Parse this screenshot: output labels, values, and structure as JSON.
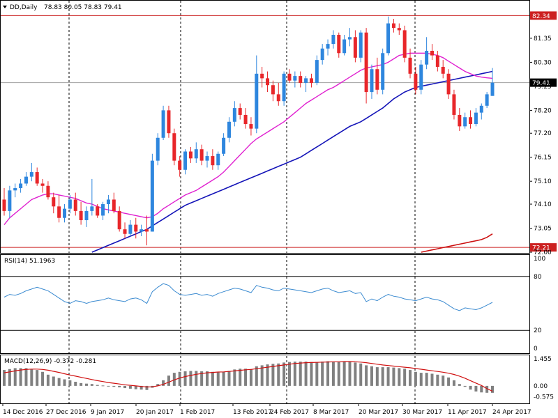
{
  "header": {
    "symbol": "DD,Daily",
    "ohlc": "78.83 80.05 78.83 79.41"
  },
  "colors": {
    "bull": "#2e86de",
    "bear": "#e8262a",
    "ma_fast": "#e020d0",
    "ma_slow": "#1414b8",
    "ma_long": "#cc1010",
    "rsi": "#3a8ad0",
    "macd_hist": "#808080",
    "macd_signal": "#d01010",
    "level_line": "#cc2020",
    "current_badge": "#000000",
    "frame": "#000000",
    "grid_dash": "#000000"
  },
  "chart_data": [
    {
      "type": "candlestick",
      "title": "DD,Daily 78.83 80.05 78.83 79.41",
      "ylim": [
        72.0,
        82.9
      ],
      "y_ticks": [
        "82.34",
        "81.35",
        "80.30",
        "79.25",
        "78.20",
        "77.20",
        "76.15",
        "75.10",
        "74.10",
        "73.05",
        "72.00"
      ],
      "x_ticks": [
        "14 Dec 2016",
        "27 Dec 2016",
        "9 Jan 2017",
        "20 Jan 2017",
        "1 Feb 2017",
        "13 Feb 2017",
        "24 Feb 2017",
        "8 Mar 2017",
        "20 Mar 2017",
        "30 Mar 2017",
        "11 Apr 2017",
        "24 Apr 2017"
      ],
      "horizontal_levels": [
        {
          "value": 82.34,
          "label": "82.34"
        },
        {
          "value": 72.21,
          "label": "72.21"
        }
      ],
      "current_price": {
        "value": 79.41,
        "label": "79.41"
      },
      "candles": [
        [
          74.3,
          74.8,
          73.6,
          73.8
        ],
        [
          73.8,
          74.9,
          73.5,
          74.7
        ],
        [
          74.7,
          75.0,
          74.4,
          74.8
        ],
        [
          74.8,
          75.2,
          74.6,
          75.0
        ],
        [
          75.0,
          75.5,
          74.9,
          75.3
        ],
        [
          75.3,
          75.9,
          75.1,
          75.5
        ],
        [
          75.5,
          75.7,
          74.9,
          75.0
        ],
        [
          75.0,
          75.2,
          74.6,
          74.9
        ],
        [
          74.9,
          75.1,
          74.3,
          74.4
        ],
        [
          74.4,
          74.6,
          73.7,
          74.0
        ],
        [
          74.0,
          74.5,
          73.3,
          73.5
        ],
        [
          73.5,
          74.1,
          73.3,
          73.9
        ],
        [
          73.9,
          74.5,
          73.7,
          74.3
        ],
        [
          74.3,
          74.6,
          73.6,
          73.8
        ],
        [
          73.8,
          74.2,
          73.2,
          73.4
        ],
        [
          73.4,
          74.0,
          73.1,
          73.8
        ],
        [
          73.8,
          75.2,
          73.6,
          74.0
        ],
        [
          74.0,
          74.1,
          73.5,
          73.6
        ],
        [
          73.6,
          74.2,
          73.4,
          74.1
        ],
        [
          74.1,
          74.5,
          73.7,
          74.3
        ],
        [
          74.3,
          74.6,
          73.7,
          73.8
        ],
        [
          73.8,
          74.0,
          72.9,
          73.0
        ],
        [
          73.0,
          73.3,
          72.6,
          72.8
        ],
        [
          72.8,
          73.4,
          72.7,
          73.2
        ],
        [
          73.2,
          73.5,
          72.6,
          72.9
        ],
        [
          72.9,
          73.2,
          72.7,
          73.0
        ],
        [
          73.0,
          73.6,
          72.3,
          72.9
        ],
        [
          72.9,
          76.3,
          72.9,
          76.0
        ],
        [
          76.0,
          77.2,
          75.8,
          77.0
        ],
        [
          77.0,
          78.4,
          76.9,
          78.2
        ],
        [
          78.2,
          78.4,
          77.0,
          77.2
        ],
        [
          77.2,
          77.4,
          75.8,
          76.0
        ],
        [
          76.0,
          76.2,
          75.3,
          75.6
        ],
        [
          75.6,
          76.5,
          75.4,
          76.4
        ],
        [
          76.4,
          76.6,
          75.9,
          76.1
        ],
        [
          76.1,
          76.8,
          75.9,
          76.5
        ],
        [
          76.5,
          76.7,
          75.8,
          76.0
        ],
        [
          76.0,
          76.4,
          75.7,
          76.2
        ],
        [
          76.2,
          76.5,
          75.6,
          75.8
        ],
        [
          75.8,
          76.4,
          75.6,
          76.3
        ],
        [
          76.3,
          77.2,
          76.2,
          77.0
        ],
        [
          77.0,
          77.9,
          76.8,
          77.7
        ],
        [
          77.7,
          78.6,
          77.5,
          78.3
        ],
        [
          78.3,
          78.5,
          77.8,
          78.0
        ],
        [
          78.0,
          78.3,
          77.4,
          77.6
        ],
        [
          77.6,
          77.9,
          77.1,
          77.4
        ],
        [
          77.4,
          80.6,
          77.2,
          79.8
        ],
        [
          79.8,
          80.1,
          79.2,
          79.6
        ],
        [
          79.6,
          79.9,
          79.0,
          79.3
        ],
        [
          79.3,
          79.5,
          78.6,
          78.9
        ],
        [
          78.9,
          79.4,
          78.4,
          78.6
        ],
        [
          78.6,
          79.9,
          78.4,
          79.8
        ],
        [
          79.8,
          80.0,
          79.4,
          79.5
        ],
        [
          79.5,
          79.9,
          79.2,
          79.7
        ],
        [
          79.7,
          79.9,
          79.2,
          79.4
        ],
        [
          79.4,
          79.7,
          79.0,
          79.6
        ],
        [
          79.6,
          79.8,
          79.2,
          79.4
        ],
        [
          79.4,
          80.6,
          79.3,
          80.4
        ],
        [
          80.4,
          81.1,
          80.2,
          80.9
        ],
        [
          80.9,
          81.3,
          80.6,
          81.1
        ],
        [
          81.1,
          81.7,
          80.9,
          81.5
        ],
        [
          81.5,
          81.6,
          80.5,
          80.7
        ],
        [
          80.7,
          81.5,
          80.6,
          81.3
        ],
        [
          81.3,
          81.8,
          81.0,
          81.4
        ],
        [
          81.4,
          81.7,
          80.3,
          80.5
        ],
        [
          80.5,
          81.7,
          80.3,
          81.6
        ],
        [
          81.6,
          81.8,
          78.5,
          79.0
        ],
        [
          79.0,
          80.2,
          78.7,
          80.0
        ],
        [
          80.0,
          80.5,
          78.9,
          79.1
        ],
        [
          79.1,
          80.9,
          78.9,
          80.7
        ],
        [
          80.7,
          82.3,
          80.6,
          82.0
        ],
        [
          82.0,
          82.2,
          81.6,
          81.8
        ],
        [
          81.8,
          82.0,
          81.5,
          81.7
        ],
        [
          81.7,
          81.9,
          80.3,
          80.5
        ],
        [
          80.5,
          80.9,
          79.6,
          79.8
        ],
        [
          79.8,
          80.1,
          78.9,
          79.1
        ],
        [
          79.1,
          80.4,
          78.9,
          80.2
        ],
        [
          80.2,
          81.4,
          80.0,
          80.8
        ],
        [
          80.8,
          81.1,
          80.4,
          80.6
        ],
        [
          80.6,
          80.8,
          79.9,
          80.1
        ],
        [
          80.1,
          80.4,
          79.6,
          79.8
        ],
        [
          79.8,
          80.0,
          78.7,
          78.9
        ],
        [
          78.9,
          79.1,
          77.8,
          78.0
        ],
        [
          78.0,
          78.3,
          77.3,
          77.5
        ],
        [
          77.5,
          78.1,
          77.4,
          77.9
        ],
        [
          77.9,
          78.2,
          77.4,
          77.6
        ],
        [
          77.6,
          78.3,
          77.5,
          78.1
        ],
        [
          78.1,
          78.5,
          77.8,
          78.4
        ],
        [
          78.4,
          79.0,
          78.3,
          78.9
        ],
        [
          78.83,
          80.05,
          78.83,
          79.41
        ]
      ],
      "ma_fast": [
        73.2,
        73.5,
        73.7,
        73.9,
        74.1,
        74.3,
        74.4,
        74.5,
        74.55,
        74.55,
        74.5,
        74.45,
        74.4,
        74.35,
        74.25,
        74.15,
        74.1,
        74.0,
        73.9,
        73.85,
        73.8,
        73.75,
        73.7,
        73.65,
        73.6,
        73.55,
        73.5,
        73.55,
        73.7,
        73.9,
        74.05,
        74.2,
        74.35,
        74.5,
        74.6,
        74.7,
        74.85,
        75.0,
        75.15,
        75.3,
        75.5,
        75.75,
        76.0,
        76.25,
        76.5,
        76.75,
        76.95,
        77.1,
        77.25,
        77.4,
        77.55,
        77.7,
        77.9,
        78.1,
        78.3,
        78.5,
        78.65,
        78.8,
        78.95,
        79.1,
        79.2,
        79.35,
        79.5,
        79.65,
        79.8,
        79.95,
        80.05,
        80.1,
        80.15,
        80.2,
        80.3,
        80.45,
        80.6,
        80.65,
        80.7,
        80.7,
        80.7,
        80.7,
        80.65,
        80.6,
        80.5,
        80.35,
        80.2,
        80.05,
        79.9,
        79.8,
        79.7,
        79.65,
        79.62,
        79.6
      ],
      "ma_slow": [
        null,
        null,
        null,
        null,
        null,
        null,
        null,
        null,
        null,
        null,
        null,
        null,
        null,
        null,
        null,
        null,
        72.0,
        72.1,
        72.2,
        72.3,
        72.4,
        72.5,
        72.6,
        72.7,
        72.8,
        72.9,
        73.0,
        73.15,
        73.3,
        73.45,
        73.6,
        73.75,
        73.9,
        74.05,
        74.15,
        74.25,
        74.35,
        74.45,
        74.55,
        74.65,
        74.75,
        74.85,
        74.95,
        75.05,
        75.15,
        75.25,
        75.35,
        75.45,
        75.55,
        75.65,
        75.75,
        75.85,
        75.95,
        76.05,
        76.15,
        76.3,
        76.45,
        76.6,
        76.75,
        76.9,
        77.05,
        77.2,
        77.35,
        77.5,
        77.6,
        77.7,
        77.85,
        78.0,
        78.15,
        78.3,
        78.5,
        78.7,
        78.85,
        79.0,
        79.1,
        79.2,
        79.25,
        79.3,
        79.35,
        79.4,
        79.45,
        79.5,
        79.55,
        79.6,
        79.65,
        79.7,
        79.75,
        79.8,
        79.85,
        79.9
      ],
      "ma_long_from_index": 76,
      "ma_long": [
        72.0,
        72.05,
        72.1,
        72.15,
        72.2,
        72.25,
        72.3,
        72.35,
        72.4,
        72.45,
        72.5,
        72.55,
        72.65,
        72.8
      ]
    },
    {
      "type": "line",
      "title": "RSI(14) 51.1963",
      "ylim": [
        0,
        100
      ],
      "y_ticks": [
        "100",
        "80",
        "20",
        "0"
      ],
      "levels": [
        80,
        20
      ],
      "values": [
        57,
        60,
        59,
        61,
        64,
        66,
        68,
        66,
        64,
        60,
        56,
        52,
        50,
        53,
        52,
        50,
        52,
        53,
        54,
        56,
        54,
        53,
        52,
        55,
        56,
        54,
        50,
        63,
        68,
        72,
        70,
        64,
        60,
        59,
        60,
        61,
        59,
        60,
        58,
        61,
        63,
        65,
        67,
        66,
        64,
        62,
        70,
        68,
        67,
        65,
        64,
        67,
        66,
        65,
        64,
        63,
        62,
        64,
        66,
        67,
        64,
        62,
        63,
        64,
        61,
        62,
        52,
        55,
        53,
        57,
        60,
        58,
        57,
        55,
        54,
        53,
        55,
        57,
        55,
        54,
        52,
        48,
        44,
        42,
        45,
        44,
        43,
        45,
        48,
        51.2
      ]
    },
    {
      "type": "bar",
      "title": "MACD(12,26,9) -0.372 -0.281",
      "ylim": [
        -0.9,
        1.6
      ],
      "y_ticks": [
        "1.455",
        "0.00",
        "-0.575"
      ],
      "histogram": [
        0.85,
        0.9,
        0.95,
        0.95,
        0.95,
        0.9,
        0.85,
        0.75,
        0.6,
        0.5,
        0.42,
        0.35,
        0.3,
        0.22,
        0.15,
        0.12,
        0.1,
        0.05,
        0.02,
        -0.02,
        -0.05,
        -0.08,
        -0.12,
        -0.15,
        -0.18,
        -0.2,
        -0.22,
        -0.1,
        0.1,
        0.3,
        0.55,
        0.7,
        0.75,
        0.78,
        0.8,
        0.8,
        0.78,
        0.78,
        0.75,
        0.72,
        0.75,
        0.8,
        0.88,
        0.92,
        0.92,
        0.9,
        1.05,
        1.1,
        1.15,
        1.18,
        1.2,
        1.25,
        1.28,
        1.3,
        1.3,
        1.3,
        1.28,
        1.28,
        1.3,
        1.32,
        1.3,
        1.3,
        1.32,
        1.3,
        1.25,
        1.2,
        1.1,
        1.05,
        1.0,
        1.0,
        1.0,
        0.98,
        0.95,
        0.92,
        0.85,
        0.75,
        0.7,
        0.7,
        0.65,
        0.6,
        0.55,
        0.45,
        0.3,
        0.1,
        -0.05,
        -0.2,
        -0.3,
        -0.35,
        -0.37,
        -0.372
      ],
      "signal": [
        0.7,
        0.75,
        0.8,
        0.85,
        0.88,
        0.9,
        0.9,
        0.88,
        0.84,
        0.78,
        0.72,
        0.65,
        0.58,
        0.52,
        0.46,
        0.4,
        0.34,
        0.28,
        0.23,
        0.18,
        0.14,
        0.1,
        0.06,
        0.03,
        0.0,
        -0.03,
        -0.06,
        -0.05,
        0.0,
        0.08,
        0.2,
        0.32,
        0.42,
        0.5,
        0.56,
        0.62,
        0.66,
        0.7,
        0.72,
        0.74,
        0.75,
        0.77,
        0.8,
        0.83,
        0.86,
        0.88,
        0.92,
        0.96,
        1.0,
        1.04,
        1.08,
        1.12,
        1.16,
        1.2,
        1.22,
        1.24,
        1.25,
        1.26,
        1.27,
        1.28,
        1.29,
        1.29,
        1.3,
        1.3,
        1.29,
        1.27,
        1.24,
        1.2,
        1.16,
        1.12,
        1.09,
        1.06,
        1.03,
        1.0,
        0.97,
        0.93,
        0.89,
        0.85,
        0.81,
        0.77,
        0.73,
        0.68,
        0.61,
        0.52,
        0.41,
        0.28,
        0.15,
        0.02,
        -0.15,
        -0.281
      ]
    }
  ]
}
